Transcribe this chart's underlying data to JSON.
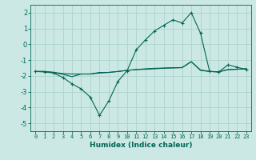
{
  "xlabel": "Humidex (Indice chaleur)",
  "ylabel": "",
  "background_color": "#cce8e4",
  "grid_color": "#aad4cc",
  "line_color": "#006655",
  "xlim": [
    -0.5,
    23.5
  ],
  "ylim": [
    -5.5,
    2.5
  ],
  "yticks": [
    -5,
    -4,
    -3,
    -2,
    -1,
    0,
    1,
    2
  ],
  "xticks": [
    0,
    1,
    2,
    3,
    4,
    5,
    6,
    7,
    8,
    9,
    10,
    11,
    12,
    13,
    14,
    15,
    16,
    17,
    18,
    19,
    20,
    21,
    22,
    23
  ],
  "series1_x": [
    0,
    1,
    2,
    3,
    4,
    5,
    6,
    7,
    8,
    9,
    10,
    11,
    12,
    13,
    14,
    15,
    16,
    17,
    18,
    19,
    20,
    21,
    22,
    23
  ],
  "series1_y": [
    -1.72,
    -1.72,
    -1.78,
    -1.85,
    -1.88,
    -1.88,
    -1.88,
    -1.82,
    -1.78,
    -1.72,
    -1.65,
    -1.6,
    -1.55,
    -1.52,
    -1.5,
    -1.48,
    -1.47,
    -1.1,
    -1.62,
    -1.72,
    -1.74,
    -1.6,
    -1.58,
    -1.55
  ],
  "series2_x": [
    0,
    1,
    2,
    3,
    4,
    5,
    6,
    7,
    8,
    9,
    10,
    11,
    12,
    13,
    14,
    15,
    16,
    17,
    18,
    19,
    20,
    21,
    22,
    23
  ],
  "series2_y": [
    -1.72,
    -1.72,
    -1.78,
    -1.9,
    -2.05,
    -1.88,
    -1.88,
    -1.78,
    -1.78,
    -1.72,
    -1.65,
    -1.6,
    -1.58,
    -1.55,
    -1.52,
    -1.5,
    -1.48,
    -1.1,
    -1.65,
    -1.72,
    -1.74,
    -1.6,
    -1.58,
    -1.55
  ],
  "series3_x": [
    0,
    1,
    2,
    3,
    4,
    5,
    6,
    7,
    8,
    9,
    10,
    11,
    12,
    13,
    14,
    15,
    16,
    17,
    18,
    19,
    20,
    21,
    22,
    23
  ],
  "series3_y": [
    -1.72,
    -1.75,
    -1.82,
    -2.1,
    -2.5,
    -2.82,
    -3.35,
    -4.5,
    -3.6,
    -2.35,
    -1.68,
    -0.35,
    0.28,
    0.85,
    1.2,
    1.55,
    1.35,
    2.0,
    0.72,
    -1.72,
    -1.75,
    -1.3,
    -1.45,
    -1.6
  ]
}
